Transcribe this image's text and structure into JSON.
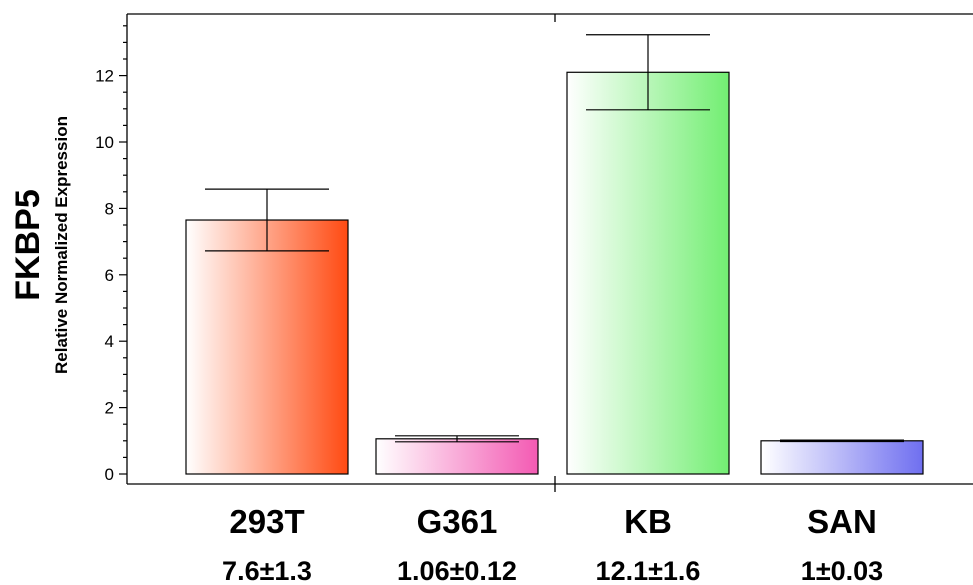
{
  "chart_data": {
    "type": "bar",
    "title": "",
    "ylabel": "FKBP5",
    "ylabel_sub": "Relative Normalized Expression",
    "xlabel": "",
    "ylim": [
      0,
      14
    ],
    "yticks": [
      0,
      2,
      4,
      6,
      8,
      10,
      12
    ],
    "grid": false,
    "categories": [
      "293T",
      "G361",
      "KB",
      "SAN"
    ],
    "values": [
      7.65,
      1.06,
      12.1,
      1.0
    ],
    "errors": [
      0.93,
      0.09,
      1.13,
      0.02
    ],
    "value_labels": [
      "7.6±1.3",
      "1.06±0.12",
      "12.1±1.6",
      "1±0.03"
    ],
    "colors": [
      "#ff4a12",
      "#f35ab3",
      "#72ee72",
      "#6f6ff0"
    ]
  }
}
